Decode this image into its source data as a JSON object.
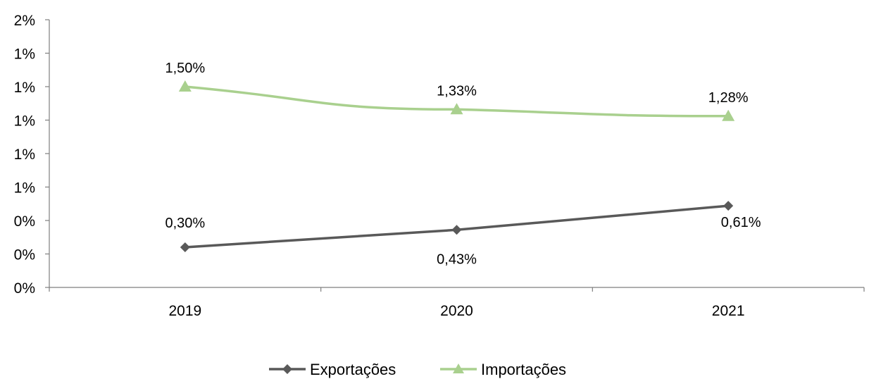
{
  "chart_data": {
    "type": "line",
    "categories": [
      "2019",
      "2020",
      "2021"
    ],
    "ylim": [
      0,
      0.02
    ],
    "y_tick_labels": [
      "0%",
      "0%",
      "0%",
      "1%",
      "1%",
      "1%",
      "1%",
      "1%",
      "2%"
    ],
    "grid": false,
    "legend_position": "bottom",
    "series": [
      {
        "name": "Exportações",
        "values": [
          0.3,
          0.43,
          0.61
        ],
        "data_labels": [
          "0,30%",
          "0,43%",
          "0,61%"
        ],
        "color": "#595959",
        "marker": "diamond"
      },
      {
        "name": "Importações",
        "values": [
          1.5,
          1.33,
          1.28
        ],
        "data_labels": [
          "1,50%",
          "1,33%",
          "1,28%"
        ],
        "color": "#a9d08e",
        "marker": "triangle"
      }
    ]
  }
}
